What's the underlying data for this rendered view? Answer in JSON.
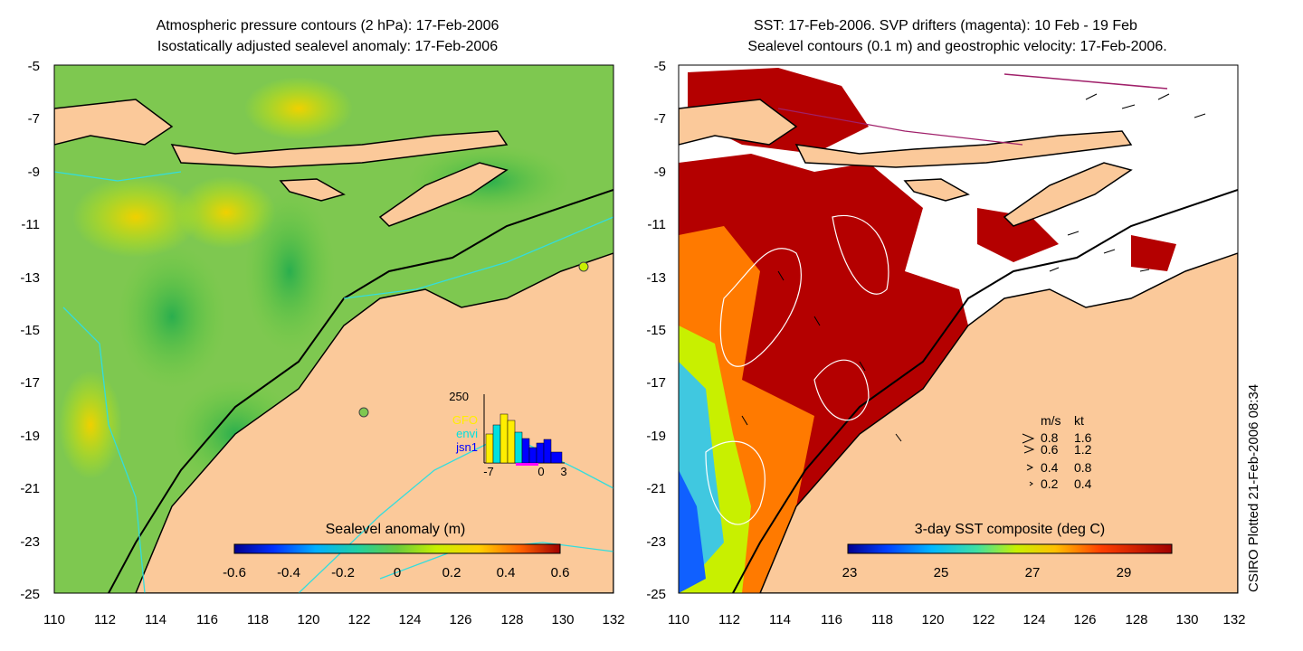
{
  "left_panel": {
    "title_line1": "Atmospheric pressure contours (2 hPa): 17-Feb-2006",
    "title_line2": "Isostatically adjusted sealevel anomaly: 17-Feb-2006",
    "x_ticks": [
      "110",
      "112",
      "114",
      "116",
      "118",
      "120",
      "122",
      "124",
      "126",
      "128",
      "130",
      "132"
    ],
    "y_ticks": [
      "-5",
      "-7",
      "-9",
      "-11",
      "-13",
      "-15",
      "-17",
      "-19",
      "-21",
      "-23",
      "-25"
    ],
    "colorbar": {
      "title": "Sealevel anomaly (m)",
      "ticks": [
        "-0.6",
        "-0.4",
        "-0.2",
        "0",
        "0.2",
        "0.4",
        "0.6"
      ]
    },
    "inset": {
      "ymax_label": "250",
      "legend": [
        {
          "name": "GFO",
          "color": "#ffee00"
        },
        {
          "name": "envi",
          "color": "#00e0e0"
        },
        {
          "name": "jsn1",
          "color": "#0000ff"
        }
      ],
      "x_ticks": [
        "-7",
        "0",
        "3"
      ]
    }
  },
  "right_panel": {
    "title_line1": "SST: 17-Feb-2006. SVP drifters (magenta): 10 Feb - 19 Feb",
    "title_line2": "Sealevel contours (0.1 m) and geostrophic velocity: 17-Feb-2006.",
    "x_ticks": [
      "110",
      "112",
      "114",
      "116",
      "118",
      "120",
      "122",
      "124",
      "126",
      "128",
      "130",
      "132"
    ],
    "y_ticks": [
      "-5",
      "-7",
      "-9",
      "-11",
      "-13",
      "-15",
      "-17",
      "-19",
      "-21",
      "-23",
      "-25"
    ],
    "colorbar": {
      "title": "3-day SST composite (deg C)",
      "ticks": [
        "23",
        "25",
        "27",
        "29"
      ]
    },
    "velocity_legend": {
      "header_ms": "m/s",
      "header_kt": "kt",
      "rows": [
        {
          "ms": "0.8",
          "kt": "1.6"
        },
        {
          "ms": "0.6",
          "kt": "1.2"
        },
        {
          "ms": "0.4",
          "kt": "0.8"
        },
        {
          "ms": "0.2",
          "kt": "0.4"
        }
      ]
    }
  },
  "credit": "CSIRO Plotted 21-Feb-2006 08:34",
  "colors": {
    "land": "#fbc99a",
    "ocean_green": "#7ec850",
    "sst_red": "#b40000",
    "contour_cyan": "#33dddd"
  }
}
